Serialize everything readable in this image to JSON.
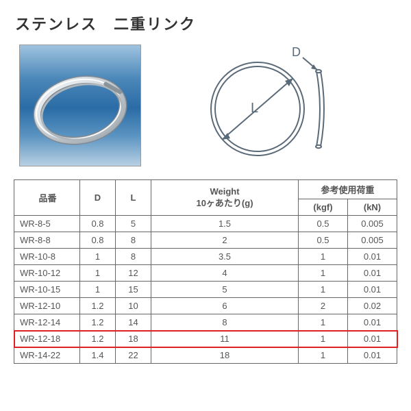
{
  "title": "ステンレス　二重リンク",
  "diagram": {
    "label_L": "L",
    "label_D": "D",
    "stroke": "#5a6a78",
    "stroke_width": 2
  },
  "photo": {
    "ring_color": "#e9ecef",
    "ring_shadow": "#b9bfc5",
    "bg_from": "#9fc3e0",
    "bg_to": "#2a6ca6"
  },
  "table": {
    "header_row1": {
      "part": "品番",
      "d": "D",
      "l": "L",
      "weight": "Weight\n10ヶあたり(g)",
      "load": "参考使用荷重"
    },
    "header_row2": {
      "kgf": "(kgf)",
      "kn": "(kN)"
    },
    "rows": [
      {
        "part": "WR-8-5",
        "d": "0.8",
        "l": "5",
        "w": "1.5",
        "kgf": "0.5",
        "kn": "0.005",
        "highlight": false
      },
      {
        "part": "WR-8-8",
        "d": "0.8",
        "l": "8",
        "w": "2",
        "kgf": "0.5",
        "kn": "0.005",
        "highlight": false
      },
      {
        "part": "WR-10-8",
        "d": "1",
        "l": "8",
        "w": "3.5",
        "kgf": "1",
        "kn": "0.01",
        "highlight": false
      },
      {
        "part": "WR-10-12",
        "d": "1",
        "l": "12",
        "w": "4",
        "kgf": "1",
        "kn": "0.01",
        "highlight": false
      },
      {
        "part": "WR-10-15",
        "d": "1",
        "l": "15",
        "w": "5",
        "kgf": "1",
        "kn": "0.01",
        "highlight": false
      },
      {
        "part": "WR-12-10",
        "d": "1.2",
        "l": "10",
        "w": "6",
        "kgf": "2",
        "kn": "0.02",
        "highlight": false
      },
      {
        "part": "WR-12-14",
        "d": "1.2",
        "l": "14",
        "w": "8",
        "kgf": "1",
        "kn": "0.01",
        "highlight": false
      },
      {
        "part": "WR-12-18",
        "d": "1.2",
        "l": "18",
        "w": "11",
        "kgf": "1",
        "kn": "0.01",
        "highlight": true
      },
      {
        "part": "WR-14-22",
        "d": "1.4",
        "l": "22",
        "w": "18",
        "kgf": "1",
        "kn": "0.01",
        "highlight": false
      }
    ],
    "highlight_color": "#e02020"
  }
}
